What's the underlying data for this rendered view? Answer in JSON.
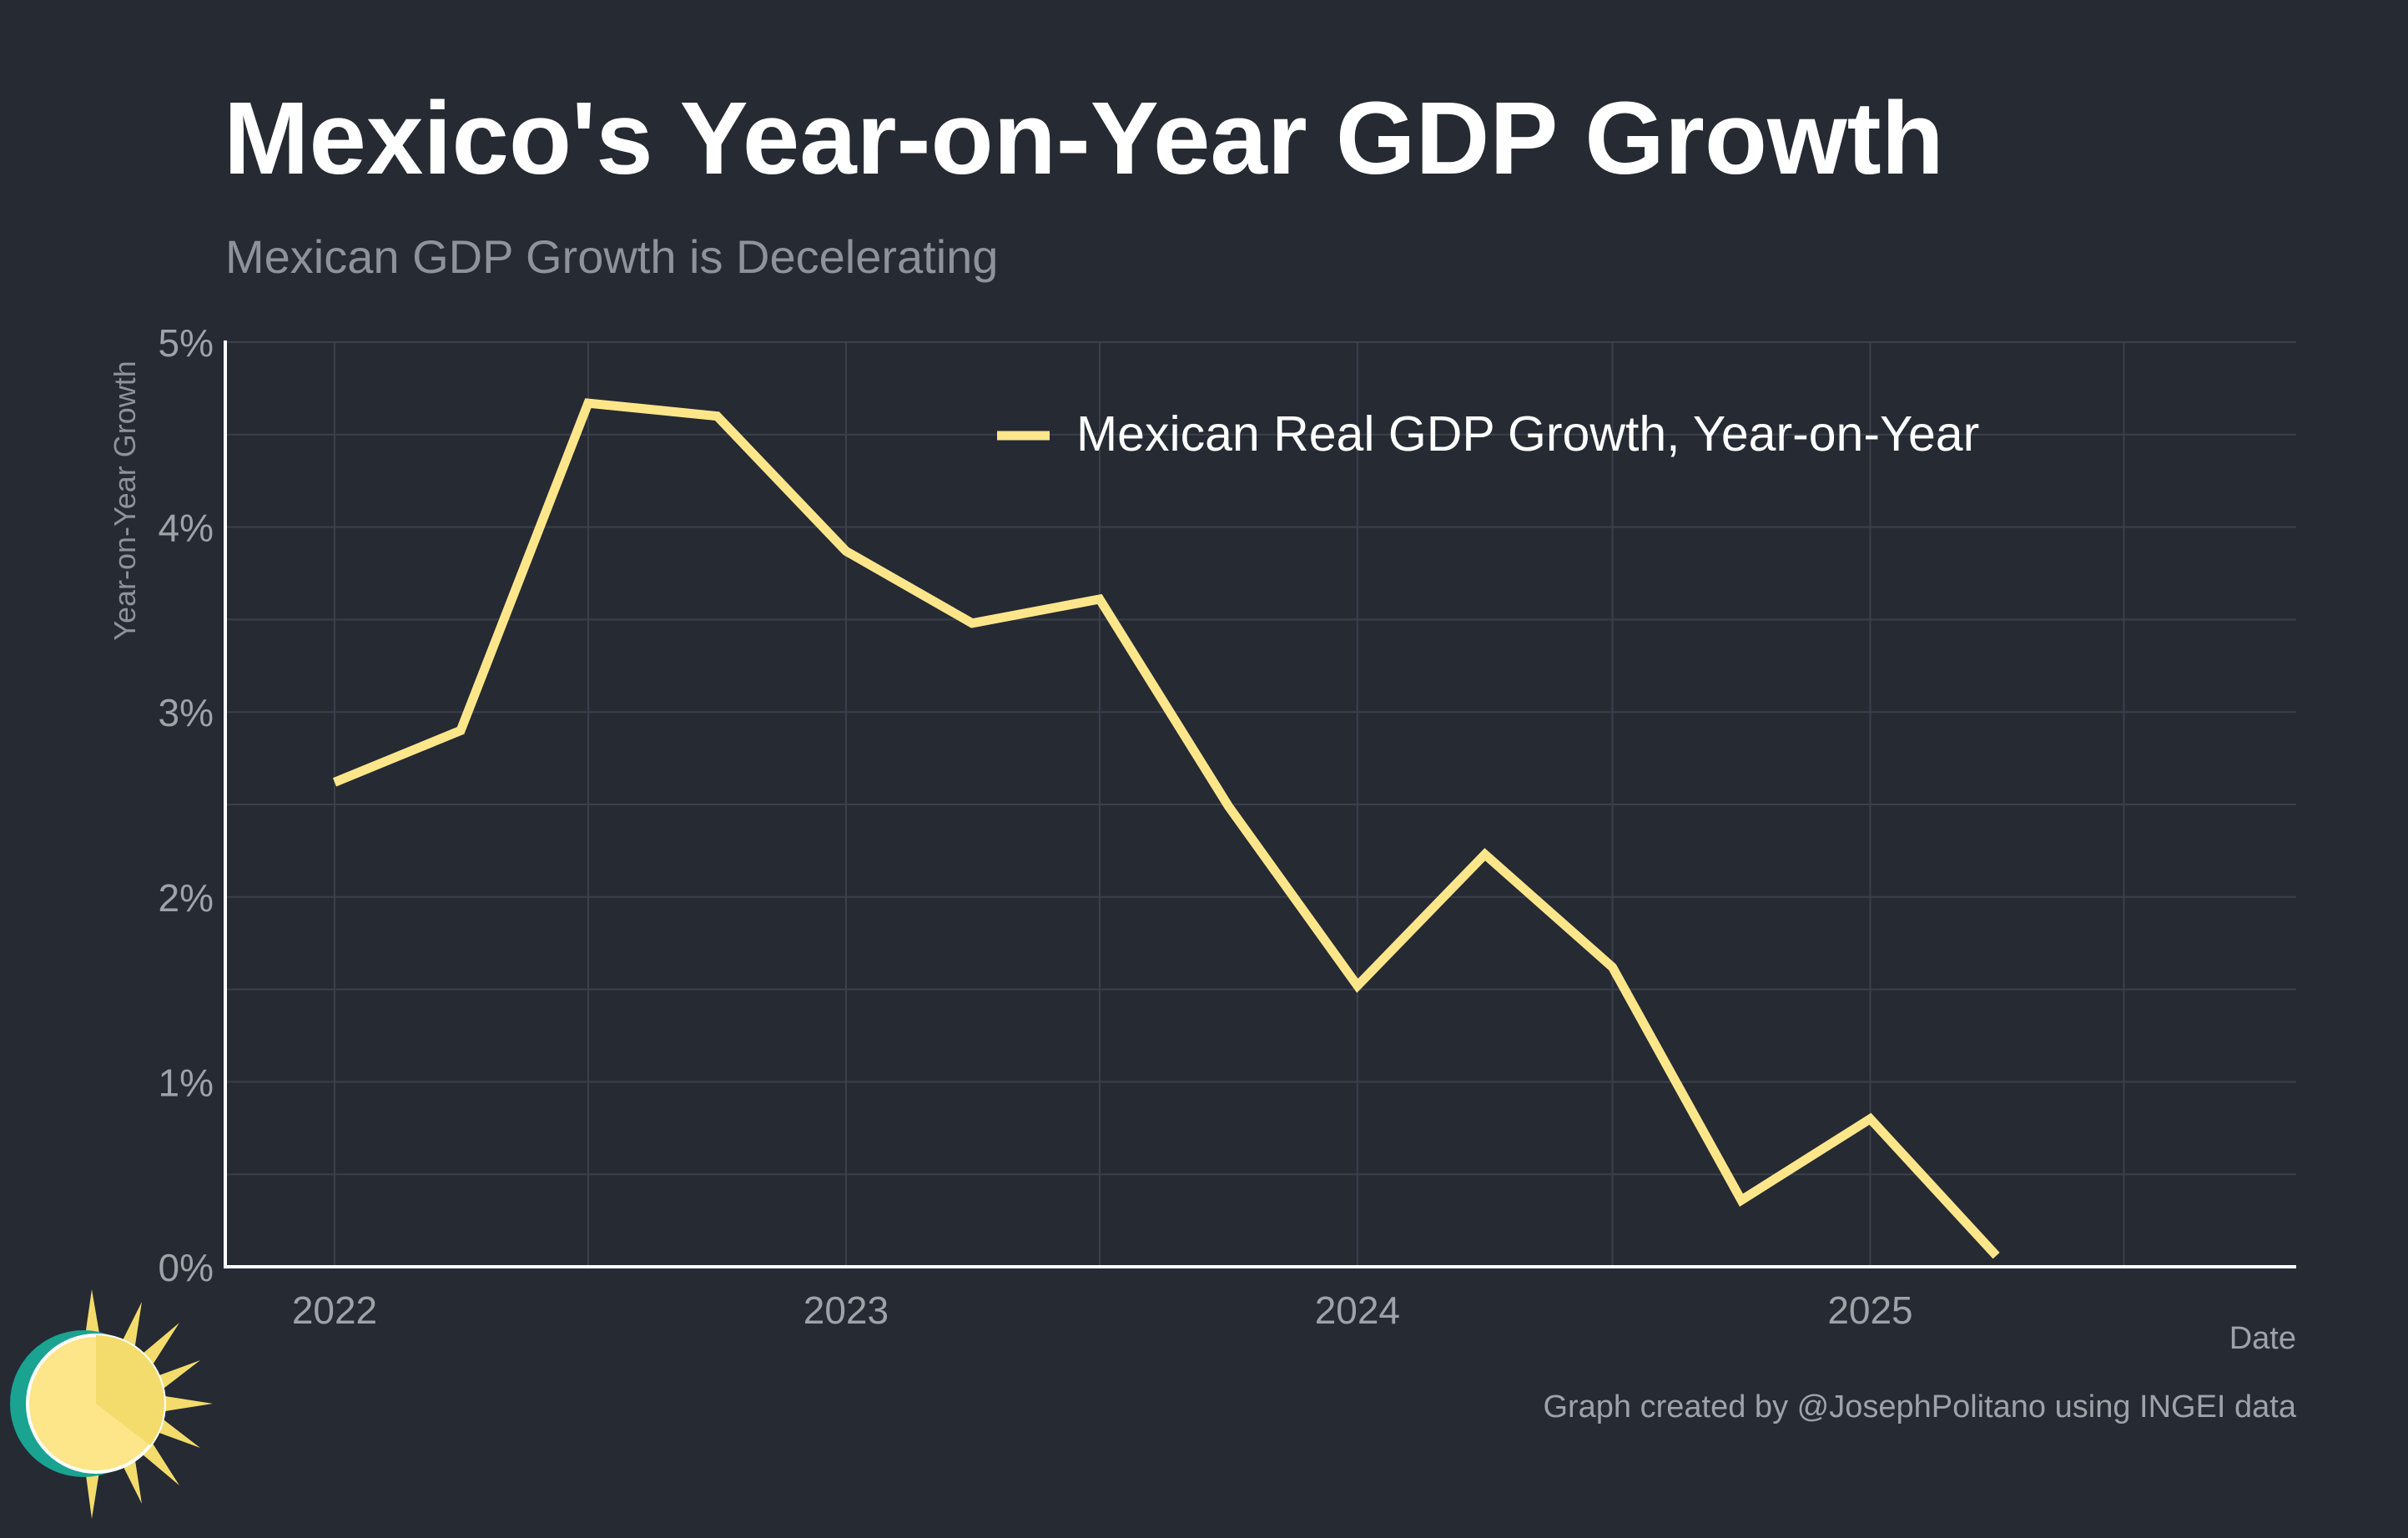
{
  "title": "Mexico's Year-on-Year GDP Growth",
  "subtitle": "Mexican GDP Growth is Decelerating",
  "footer": {
    "date_label": "Date",
    "credit": "Graph created by @JosephPolitano using INGEI data"
  },
  "logo_icon": "sun-logo-icon",
  "chart_data": {
    "type": "line",
    "title": "Mexico's Year-on-Year GDP Growth",
    "subtitle": "Mexican GDP Growth is Decelerating",
    "xlabel": "Date",
    "ylabel": "Year-on-Year Growth",
    "x_tick_labels": [
      "2022",
      "2023",
      "2024",
      "2025"
    ],
    "y_tick_labels": [
      "0%",
      "1%",
      "2%",
      "3%",
      "4%",
      "5%"
    ],
    "ylim": [
      0,
      5
    ],
    "xlim": [
      "2021-10-15",
      "2025-11-01"
    ],
    "grid": true,
    "legend_position": "top-right",
    "series": [
      {
        "name": "Mexican Real GDP Growth, Year-on-Year",
        "color": "#fde68a",
        "x": [
          "2022-01-01",
          "2022-04-01",
          "2022-07-01",
          "2022-10-01",
          "2023-01-01",
          "2023-04-01",
          "2023-07-01",
          "2023-10-01",
          "2024-01-01",
          "2024-04-01",
          "2024-07-01",
          "2024-10-01",
          "2025-01-01",
          "2025-04-01"
        ],
        "values": [
          2.62,
          2.9,
          4.67,
          4.6,
          3.87,
          3.48,
          3.61,
          2.49,
          1.52,
          2.23,
          1.62,
          0.36,
          0.8,
          0.06
        ]
      }
    ]
  }
}
